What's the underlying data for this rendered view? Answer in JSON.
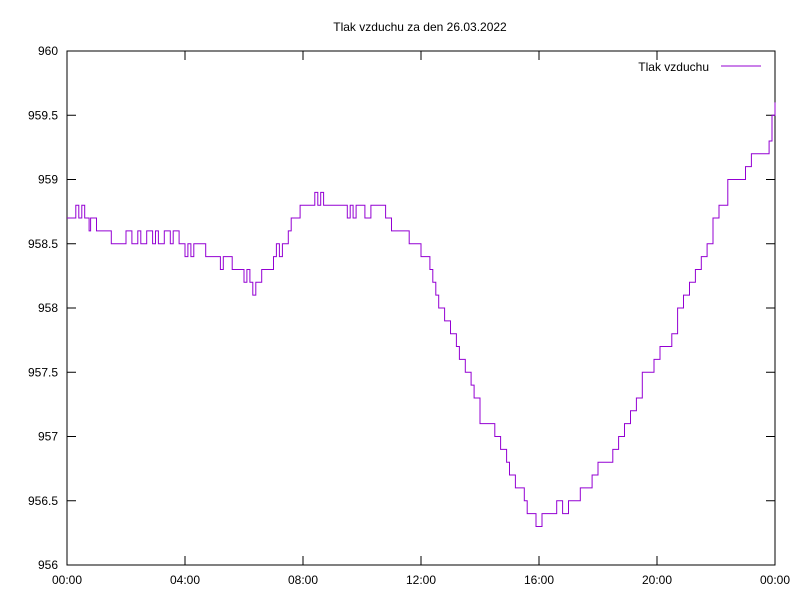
{
  "chart_data": {
    "type": "line",
    "title": "Tlak vzduchu za den 26.03.2022",
    "xlabel": "",
    "ylabel": "",
    "x_unit": "hours",
    "xlim": [
      0,
      24
    ],
    "ylim": [
      956,
      960
    ],
    "x_ticks": [
      {
        "value": 0,
        "label": "00:00"
      },
      {
        "value": 4,
        "label": "04:00"
      },
      {
        "value": 8,
        "label": "08:00"
      },
      {
        "value": 12,
        "label": "12:00"
      },
      {
        "value": 16,
        "label": "16:00"
      },
      {
        "value": 20,
        "label": "20:00"
      },
      {
        "value": 24,
        "label": "00:00"
      }
    ],
    "y_ticks": [
      {
        "value": 956,
        "label": "956"
      },
      {
        "value": 956.5,
        "label": "956.5"
      },
      {
        "value": 957,
        "label": "957"
      },
      {
        "value": 957.5,
        "label": "957.5"
      },
      {
        "value": 958,
        "label": "958"
      },
      {
        "value": 958.5,
        "label": "958.5"
      },
      {
        "value": 959,
        "label": "959"
      },
      {
        "value": 959.5,
        "label": "959.5"
      },
      {
        "value": 960,
        "label": "960"
      }
    ],
    "grid": false,
    "legend_position": "top-right",
    "step": true,
    "series": [
      {
        "name": "Tlak vzduchu",
        "color": "#9400d3",
        "x": [
          0,
          0.25,
          0.3,
          0.4,
          0.5,
          0.6,
          0.75,
          0.8,
          0.9,
          1.0,
          1.5,
          1.6,
          2.0,
          2.2,
          2.4,
          2.5,
          2.6,
          2.7,
          2.9,
          3.0,
          3.1,
          3.2,
          3.3,
          3.5,
          3.6,
          3.7,
          3.8,
          4.0,
          4.1,
          4.2,
          4.3,
          4.6,
          4.7,
          5.2,
          5.3,
          5.6,
          5.9,
          6.0,
          6.1,
          6.2,
          6.3,
          6.4,
          6.5,
          6.6,
          6.8,
          7.0,
          7.1,
          7.2,
          7.3,
          7.5,
          7.6,
          7.7,
          7.9,
          8.2,
          8.4,
          8.5,
          8.6,
          8.7,
          8.8,
          9.0,
          9.2,
          9.5,
          9.6,
          9.7,
          9.8,
          10.0,
          10.1,
          10.3,
          10.5,
          10.7,
          10.8,
          11.0,
          11.4,
          11.6,
          12.0,
          12.3,
          12.4,
          12.5,
          12.6,
          12.8,
          13.0,
          13.2,
          13.3,
          13.5,
          13.7,
          13.8,
          14.0,
          14.3,
          14.5,
          14.7,
          14.9,
          15.0,
          15.2,
          15.4,
          15.5,
          15.6,
          15.8,
          15.9,
          16.1,
          16.3,
          16.4,
          16.6,
          16.8,
          17.0,
          17.2,
          17.4,
          17.6,
          17.8,
          18.0,
          18.3,
          18.5,
          18.7,
          18.9,
          19.1,
          19.3,
          19.5,
          19.6,
          19.9,
          20.1,
          20.3,
          20.5,
          20.7,
          20.9,
          21.1,
          21.3,
          21.5,
          21.7,
          21.9,
          22.1,
          22.4,
          22.6,
          22.8,
          23.0,
          23.2,
          23.4,
          23.6,
          23.8,
          23.9,
          24.0
        ],
        "values": [
          958.7,
          958.7,
          958.8,
          958.7,
          958.8,
          958.7,
          958.6,
          958.7,
          958.7,
          958.6,
          958.5,
          958.5,
          958.6,
          958.5,
          958.6,
          958.5,
          958.5,
          958.6,
          958.5,
          958.6,
          958.5,
          958.5,
          958.6,
          958.5,
          958.6,
          958.6,
          958.5,
          958.4,
          958.5,
          958.4,
          958.5,
          958.5,
          958.4,
          958.3,
          958.4,
          958.3,
          958.3,
          958.2,
          958.3,
          958.2,
          958.1,
          958.2,
          958.2,
          958.3,
          958.3,
          958.4,
          958.5,
          958.4,
          958.5,
          958.6,
          958.7,
          958.7,
          958.8,
          958.8,
          958.9,
          958.8,
          958.9,
          958.8,
          958.8,
          958.8,
          958.8,
          958.7,
          958.8,
          958.7,
          958.8,
          958.8,
          958.7,
          958.8,
          958.8,
          958.8,
          958.7,
          958.6,
          958.6,
          958.5,
          958.4,
          958.3,
          958.2,
          958.1,
          958.0,
          957.9,
          957.8,
          957.7,
          957.6,
          957.5,
          957.4,
          957.3,
          957.1,
          957.1,
          957.0,
          956.9,
          956.8,
          956.7,
          956.6,
          956.6,
          956.5,
          956.4,
          956.4,
          956.3,
          956.4,
          956.4,
          956.4,
          956.5,
          956.4,
          956.5,
          956.5,
          956.6,
          956.6,
          956.7,
          956.8,
          956.8,
          956.9,
          957.0,
          957.1,
          957.2,
          957.3,
          957.5,
          957.5,
          957.6,
          957.7,
          957.7,
          957.8,
          958.0,
          958.1,
          958.2,
          958.3,
          958.4,
          958.5,
          958.7,
          958.8,
          959.0,
          959.0,
          959.0,
          959.1,
          959.2,
          959.2,
          959.2,
          959.3,
          959.5,
          959.6
        ]
      }
    ]
  }
}
